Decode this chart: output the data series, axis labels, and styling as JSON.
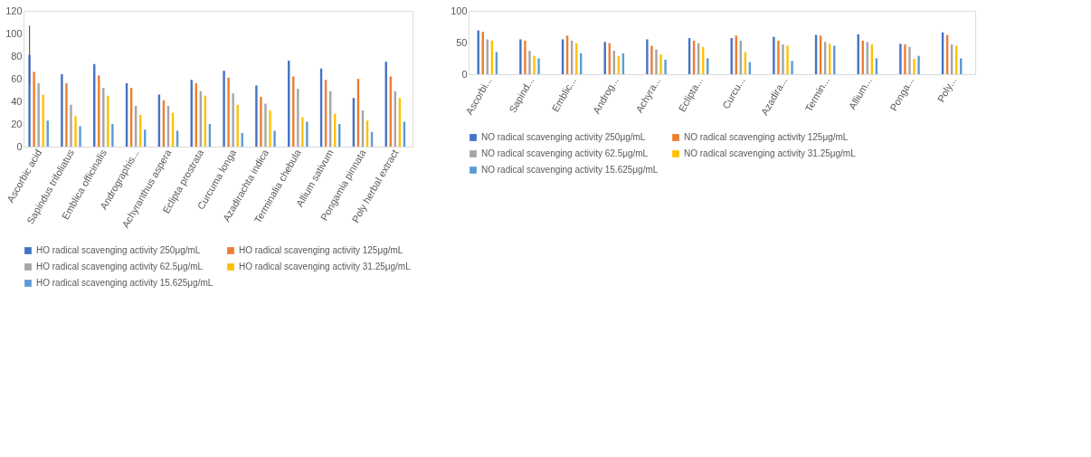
{
  "chart_data": [
    {
      "type": "bar",
      "categories": [
        "Ascorbic acid",
        "Sapindus trifoliatus",
        "Emblica officinalis",
        "Andrographis...",
        "Achyranthus aspera",
        "Eclipta prostrata",
        "Curcuma longa",
        "Azadirachta indica",
        "Terminalia chebula",
        "Allium sativum",
        "Pongamia pinnata",
        "Poly herbal extract"
      ],
      "series": [
        {
          "name": "HO radical scavenging activity 250μg/mL",
          "color": "#4472c4",
          "values": [
            81,
            64,
            73,
            56,
            46,
            59,
            67,
            54,
            76,
            69,
            43,
            75
          ],
          "errors": [
            26,
            null,
            null,
            null,
            null,
            null,
            null,
            null,
            null,
            null,
            null,
            null
          ]
        },
        {
          "name": "HO radical scavenging activity 125μg/mL",
          "color": "#ed7d31",
          "values": [
            66,
            56,
            63,
            52,
            41,
            56,
            61,
            44,
            62,
            59,
            60,
            62
          ]
        },
        {
          "name": "HO radical scavenging activity 62.5μg/mL",
          "color": "#a5a5a5",
          "values": [
            56,
            37,
            52,
            36,
            36,
            49,
            47,
            38,
            51,
            49,
            32,
            49
          ]
        },
        {
          "name": "HO radical scavenging activity 31.25μg/mL",
          "color": "#ffc000",
          "values": [
            46,
            27,
            45,
            28,
            30,
            45,
            37,
            32,
            26,
            29,
            23,
            43
          ]
        },
        {
          "name": "HO radical scavenging activity 15.625μg/mL",
          "color": "#5b9bd5",
          "values": [
            23,
            18,
            20,
            15,
            14,
            20,
            12,
            14,
            22,
            20,
            13,
            22
          ]
        }
      ],
      "ylim": [
        0,
        120
      ],
      "yticks": [
        0,
        20,
        40,
        60,
        80,
        100,
        120
      ],
      "grid": false,
      "legend": "bottom"
    },
    {
      "type": "bar",
      "categories": [
        "Ascorbi...",
        "Sapind...",
        "Emblic...",
        "Androg...",
        "Achyra...",
        "Eclipta...",
        "Curcu...",
        "Azadira...",
        "Termin...",
        "Allium...",
        "Ponga...",
        "Poly..."
      ],
      "series": [
        {
          "name": "NO radical scavenging activity 250μg/mL",
          "color": "#4472c4",
          "values": [
            69,
            55,
            55,
            51,
            55,
            57,
            57,
            59,
            62,
            63,
            48,
            66
          ]
        },
        {
          "name": "NO radical scavenging activity 125μg/mL",
          "color": "#ed7d31",
          "values": [
            67,
            53,
            61,
            49,
            45,
            53,
            61,
            53,
            61,
            53,
            47,
            62
          ]
        },
        {
          "name": "NO radical scavenging activity 62.5μg/mL",
          "color": "#a5a5a5",
          "values": [
            55,
            37,
            53,
            37,
            39,
            49,
            53,
            47,
            51,
            51,
            43,
            47
          ]
        },
        {
          "name": "NO radical scavenging activity 31.25μg/mL",
          "color": "#ffc000",
          "values": [
            53,
            29,
            49,
            29,
            31,
            43,
            35,
            45,
            48,
            47,
            24,
            45
          ]
        },
        {
          "name": "NO radical scavenging activity 15.625μg/mL",
          "color": "#5b9bd5",
          "values": [
            35,
            25,
            33,
            33,
            23,
            25,
            19,
            21,
            45,
            25,
            29,
            25
          ]
        }
      ],
      "ylim": [
        0,
        100
      ],
      "yticks": [
        0,
        50,
        100
      ],
      "grid": false,
      "legend": "bottom"
    }
  ]
}
